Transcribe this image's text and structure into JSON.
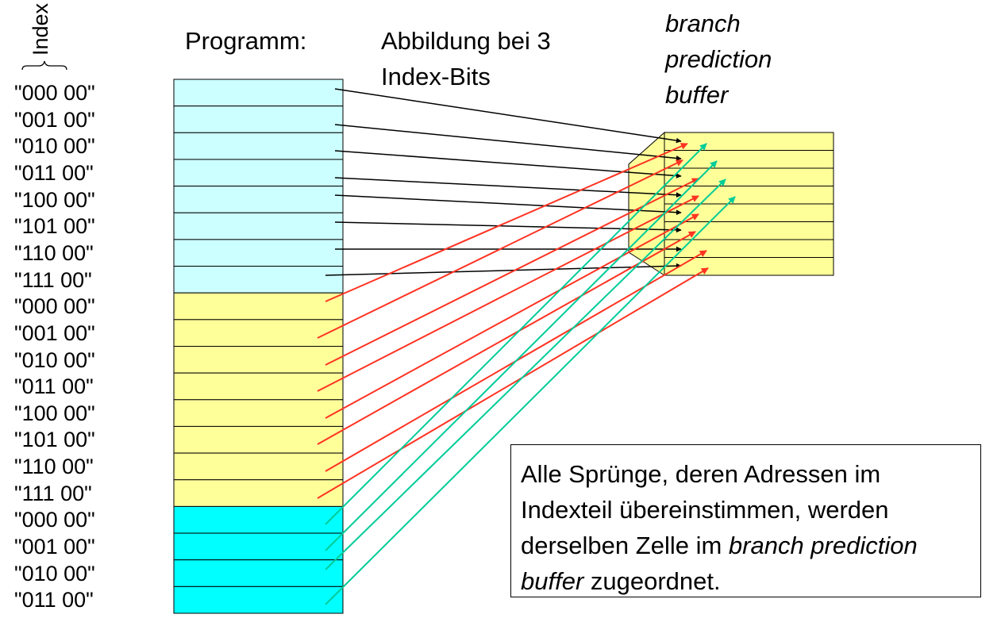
{
  "index_label": "Index",
  "program_label": "Programm:",
  "mapping_label": [
    "Abbildung bei 3",
    "Index-Bits"
  ],
  "buffer_label": [
    "branch",
    "prediction",
    "buffer"
  ],
  "addresses": [
    "\"000 00\"",
    "\"001 00\"",
    "\"010 00\"",
    "\"011 00\"",
    "\"100 00\"",
    "\"101 00\"",
    "\"110 00\"",
    "\"111 00\"",
    "\"000 00\"",
    "\"001 00\"",
    "\"010 00\"",
    "\"011 00\"",
    "\"100 00\"",
    "\"101 00\"",
    "\"110 00\"",
    "\"111 00\"",
    "\"000 00\"",
    "\"001 00\"",
    "\"010 00\"",
    "\"011 00\""
  ],
  "buffer_cells": 8,
  "note": {
    "part1": "Alle Sprünge, deren Adressen im Indexteil übereinstimmen, werden derselben Zelle im ",
    "italic": "branch prediction buffer",
    "part2": " zugeordnet."
  },
  "colors": {
    "block1": "#ccffff",
    "block2": "#ffff99",
    "block3": "#00ffff",
    "buffer": "#ffff99",
    "arrow1": "#000000",
    "arrow2": "#ff3322",
    "arrow3": "#00cc99"
  }
}
